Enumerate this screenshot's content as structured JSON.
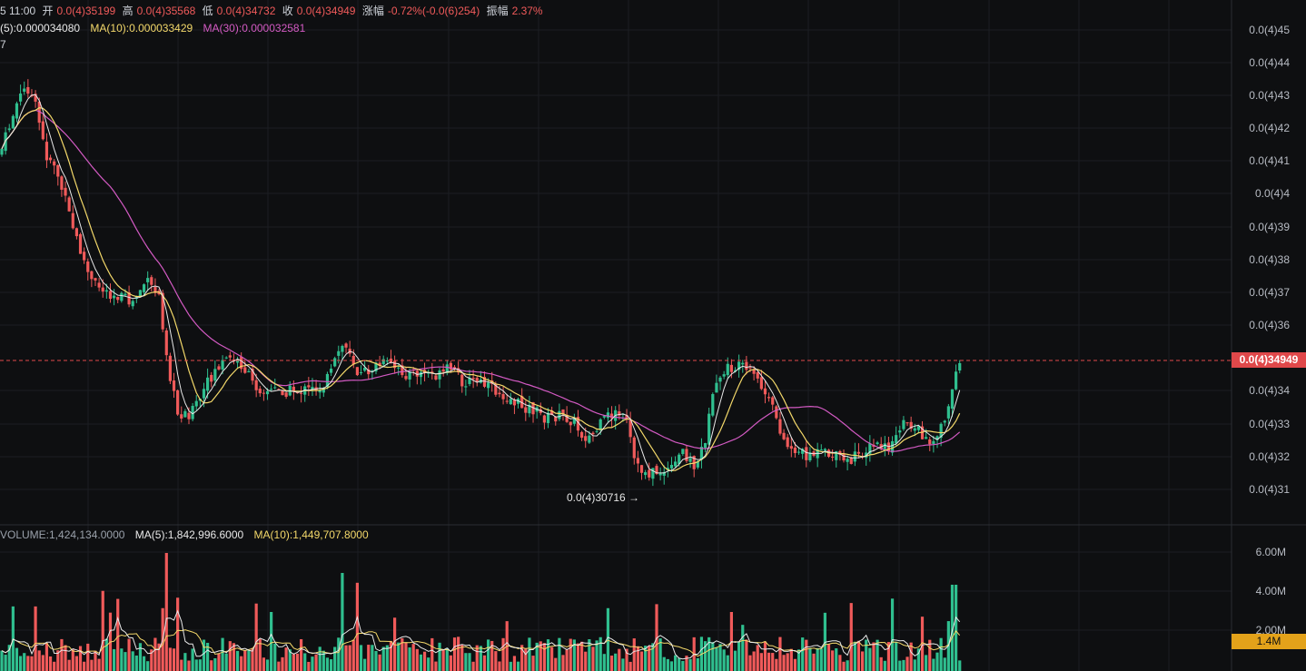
{
  "header": {
    "time_fragment": "5 11:00",
    "open_label": "开",
    "open_value": "0.0(4)35199",
    "high_label": "高",
    "high_value": "0.0(4)35568",
    "low_label": "低",
    "low_value": "0.0(4)34732",
    "close_label": "收",
    "close_value": "0.0(4)34949",
    "change_label": "涨幅",
    "change_value": "-0.72%(-0.0(6)254)",
    "amplitude_label": "振幅",
    "amplitude_value": "2.37%"
  },
  "ma_indicators": {
    "ma5": "(5):0.000034080",
    "ma10": "MA(10):0.000033429",
    "ma30": "MA(30):0.000032581",
    "fragment": "7"
  },
  "price_axis": {
    "labels": [
      "0.0(4)45",
      "0.0(4)44",
      "0.0(4)43",
      "0.0(4)42",
      "0.0(4)41",
      "0.0(4)4",
      "0.0(4)39",
      "0.0(4)38",
      "0.0(4)37",
      "0.0(4)36",
      "0.0(4)34",
      "0.0(4)33",
      "0.0(4)32",
      "0.0(4)31"
    ],
    "current_price": "0.0(4)34949"
  },
  "min_marker": "0.0(4)30716 →",
  "volume": {
    "label": "VOLUME:1,424,134.0000",
    "ma5": "MA(5):1,842,996.6000",
    "ma10": "MA(10):1,449,707.8000",
    "axis_labels": [
      "6.00M",
      "4.00M",
      "2.00M"
    ],
    "current": "1.4M"
  },
  "colors": {
    "up": "#2fbf8f",
    "down": "#f05a5a",
    "ma5": "#e8e8e8",
    "ma10": "#f3d86a",
    "ma30": "#d35ac3",
    "current_price_bg": "#e0484a",
    "volume_current_bg": "#e3a21a"
  }
}
